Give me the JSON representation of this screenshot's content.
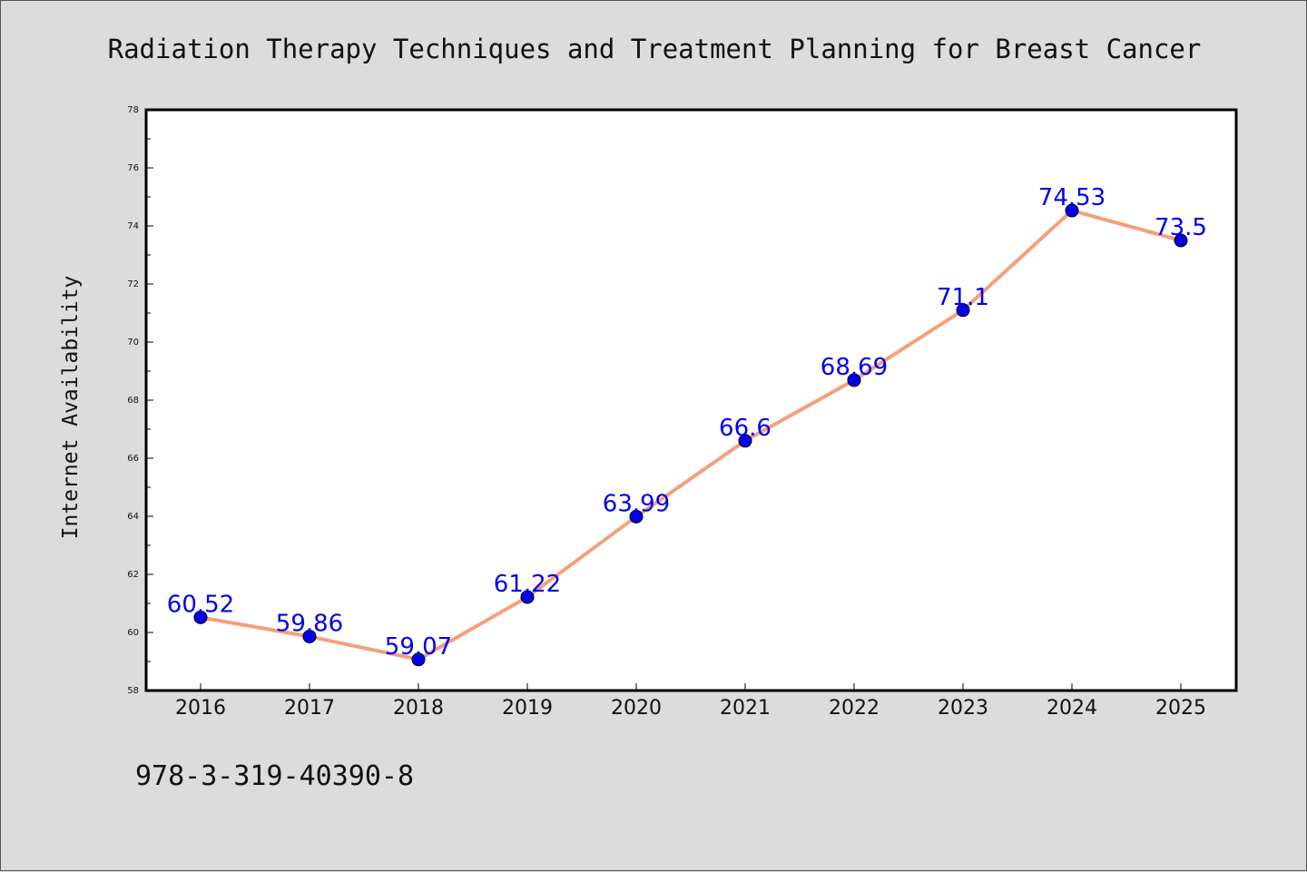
{
  "chart_data": {
    "type": "line",
    "title": "Radiation Therapy Techniques and Treatment Planning for Breast Cancer",
    "xlabel": "",
    "ylabel": "Internet Availability",
    "categories": [
      "2016",
      "2017",
      "2018",
      "2019",
      "2020",
      "2021",
      "2022",
      "2023",
      "2024",
      "2025"
    ],
    "series": [
      {
        "values": [
          60.52,
          59.86,
          59.07,
          61.22,
          63.99,
          66.6,
          68.69,
          71.1,
          74.53,
          73.5
        ]
      }
    ],
    "data_labels": [
      "60.52",
      "59.86",
      "59.07",
      "61.22",
      "63.99",
      "66.6",
      "68.69",
      "71.1",
      "74.53",
      "73.5"
    ],
    "ylim": [
      58,
      78
    ],
    "yticks": [
      58,
      60,
      62,
      64,
      66,
      68,
      70,
      72,
      74,
      76,
      78
    ],
    "grid": false,
    "line_color": "#f4a07c",
    "marker_color": "#0000ee",
    "label_color": "#0000ee"
  },
  "footer": {
    "text": "978-3-319-40390-8"
  }
}
